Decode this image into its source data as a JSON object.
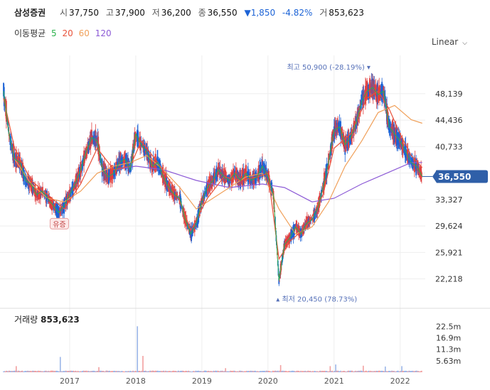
{
  "header": {
    "name": "삼성증권",
    "open_label": "시",
    "open": "37,750",
    "high_label": "고",
    "high": "37,900",
    "low_label": "저",
    "low": "36,200",
    "close_label": "종",
    "close": "36,550",
    "change": "▼1,850",
    "change_pct": "-4.82%",
    "volume_label": "거",
    "volume": "853,623"
  },
  "ma_legend": {
    "label": "이동평균",
    "items": [
      {
        "label": "5",
        "color": "#2bb24c"
      },
      {
        "label": "20",
        "color": "#e8523a"
      },
      {
        "label": "60",
        "color": "#f0a05a"
      },
      {
        "label": "120",
        "color": "#8c5ad6"
      }
    ]
  },
  "scale_button": {
    "label": "Linear",
    "icon": "chevron-down-icon"
  },
  "colors": {
    "up": "#e04040",
    "down": "#1c63d6",
    "price_tag": "#2f5fa8",
    "grid": "#eeeeee"
  },
  "chart_data": {
    "type": "candlestick",
    "x_ticks": [
      "2017",
      "2018",
      "2019",
      "2020",
      "2021",
      "2022"
    ],
    "y_ticks": [
      "48,139",
      "44,436",
      "40,733",
      "37,030",
      "33,327",
      "29,624",
      "25,921",
      "22,218"
    ],
    "ylim": [
      19000,
      52500
    ],
    "current_price": {
      "label": "36,550",
      "value": 36550
    },
    "max_annotation": {
      "prefix": "최고",
      "value_text": "50,900",
      "pct": "(-28.19%)",
      "value": 50900,
      "date": "2021-08"
    },
    "min_annotation": {
      "prefix": "최저",
      "value_text": "20,450",
      "pct": "(78.73%)",
      "value": 20450,
      "date": "2020-03"
    },
    "event_tag": {
      "label": "유증",
      "date": "2016-11"
    },
    "price_path": [
      [
        "2016-01",
        48500
      ],
      [
        "2016-02",
        42500
      ],
      [
        "2016-03",
        39000
      ],
      [
        "2016-04",
        38500
      ],
      [
        "2016-05",
        36000
      ],
      [
        "2016-06",
        35500
      ],
      [
        "2016-07",
        34000
      ],
      [
        "2016-08",
        34500
      ],
      [
        "2016-09",
        33500
      ],
      [
        "2016-10",
        32500
      ],
      [
        "2016-11",
        31500
      ],
      [
        "2016-12",
        32500
      ],
      [
        "2017-01",
        34000
      ],
      [
        "2017-02",
        35500
      ],
      [
        "2017-03",
        37500
      ],
      [
        "2017-04",
        40000
      ],
      [
        "2017-05",
        42000
      ],
      [
        "2017-06",
        41500
      ],
      [
        "2017-07",
        37500
      ],
      [
        "2017-08",
        36500
      ],
      [
        "2017-09",
        37000
      ],
      [
        "2017-10",
        38500
      ],
      [
        "2017-11",
        39000
      ],
      [
        "2017-12",
        37500
      ],
      [
        "2018-01",
        42500
      ],
      [
        "2018-02",
        41000
      ],
      [
        "2018-03",
        40000
      ],
      [
        "2018-04",
        38000
      ],
      [
        "2018-05",
        38500
      ],
      [
        "2018-06",
        36500
      ],
      [
        "2018-07",
        35000
      ],
      [
        "2018-08",
        34000
      ],
      [
        "2018-09",
        33500
      ],
      [
        "2018-10",
        30500
      ],
      [
        "2018-11",
        28500
      ],
      [
        "2018-12",
        30000
      ],
      [
        "2019-01",
        33000
      ],
      [
        "2019-02",
        35000
      ],
      [
        "2019-03",
        36000
      ],
      [
        "2019-04",
        37500
      ],
      [
        "2019-05",
        36500
      ],
      [
        "2019-06",
        36000
      ],
      [
        "2019-07",
        37000
      ],
      [
        "2019-08",
        36000
      ],
      [
        "2019-09",
        37000
      ],
      [
        "2019-10",
        36000
      ],
      [
        "2019-11",
        36500
      ],
      [
        "2019-12",
        38000
      ],
      [
        "2020-01",
        36500
      ],
      [
        "2020-02",
        34000
      ],
      [
        "2020-03",
        22000
      ],
      [
        "2020-04",
        27000
      ],
      [
        "2020-05",
        28000
      ],
      [
        "2020-06",
        29500
      ],
      [
        "2020-07",
        28500
      ],
      [
        "2020-08",
        30000
      ],
      [
        "2020-09",
        30500
      ],
      [
        "2020-10",
        32000
      ],
      [
        "2020-11",
        35000
      ],
      [
        "2020-12",
        38500
      ],
      [
        "2021-01",
        43000
      ],
      [
        "2021-02",
        43500
      ],
      [
        "2021-03",
        41000
      ],
      [
        "2021-04",
        42000
      ],
      [
        "2021-05",
        44000
      ],
      [
        "2021-06",
        47000
      ],
      [
        "2021-07",
        48500
      ],
      [
        "2021-08",
        49000
      ],
      [
        "2021-09",
        48000
      ],
      [
        "2021-10",
        48500
      ],
      [
        "2021-11",
        43500
      ],
      [
        "2021-12",
        42500
      ],
      [
        "2022-01",
        41500
      ],
      [
        "2022-02",
        40000
      ],
      [
        "2022-03",
        38500
      ],
      [
        "2022-04",
        38000
      ],
      [
        "2022-05",
        36550
      ]
    ],
    "ma20": [
      [
        "2016-01",
        47500
      ],
      [
        "2016-03",
        40500
      ],
      [
        "2016-06",
        36000
      ],
      [
        "2016-09",
        34000
      ],
      [
        "2016-12",
        32000
      ],
      [
        "2017-03",
        35500
      ],
      [
        "2017-06",
        40500
      ],
      [
        "2017-09",
        37500
      ],
      [
        "2017-12",
        38000
      ],
      [
        "2018-02",
        41500
      ],
      [
        "2018-05",
        38500
      ],
      [
        "2018-08",
        35000
      ],
      [
        "2018-11",
        29000
      ],
      [
        "2019-02",
        33500
      ],
      [
        "2019-05",
        36500
      ],
      [
        "2019-08",
        36000
      ],
      [
        "2019-11",
        36500
      ],
      [
        "2020-01",
        37000
      ],
      [
        "2020-03",
        25000
      ],
      [
        "2020-05",
        27500
      ],
      [
        "2020-08",
        29500
      ],
      [
        "2020-11",
        34000
      ],
      [
        "2021-01",
        40500
      ],
      [
        "2021-04",
        42500
      ],
      [
        "2021-07",
        47500
      ],
      [
        "2021-09",
        48500
      ],
      [
        "2021-11",
        46000
      ],
      [
        "2022-01",
        42500
      ],
      [
        "2022-03",
        39500
      ],
      [
        "2022-05",
        37800
      ]
    ],
    "ma60": [
      [
        "2016-03",
        39000
      ],
      [
        "2016-06",
        35500
      ],
      [
        "2016-09",
        33500
      ],
      [
        "2016-12",
        33000
      ],
      [
        "2017-03",
        34500
      ],
      [
        "2017-06",
        37000
      ],
      [
        "2017-09",
        38000
      ],
      [
        "2017-12",
        38500
      ],
      [
        "2018-03",
        39500
      ],
      [
        "2018-06",
        37500
      ],
      [
        "2018-09",
        35000
      ],
      [
        "2018-12",
        32000
      ],
      [
        "2019-03",
        33500
      ],
      [
        "2019-06",
        35000
      ],
      [
        "2019-09",
        36500
      ],
      [
        "2019-12",
        37000
      ],
      [
        "2020-03",
        32000
      ],
      [
        "2020-06",
        28500
      ],
      [
        "2020-09",
        29500
      ],
      [
        "2020-12",
        33000
      ],
      [
        "2021-03",
        38000
      ],
      [
        "2021-06",
        41500
      ],
      [
        "2021-09",
        45500
      ],
      [
        "2021-12",
        46500
      ],
      [
        "2022-03",
        44500
      ],
      [
        "2022-05",
        44000
      ]
    ],
    "ma120": [
      [
        "2017-09",
        37500
      ],
      [
        "2018-01",
        38000
      ],
      [
        "2018-06",
        37500
      ],
      [
        "2018-12",
        36000
      ],
      [
        "2019-06",
        35000
      ],
      [
        "2019-12",
        35500
      ],
      [
        "2020-04",
        35000
      ],
      [
        "2020-09",
        33000
      ],
      [
        "2021-01",
        33500
      ],
      [
        "2021-06",
        35500
      ],
      [
        "2021-12",
        37500
      ],
      [
        "2022-03",
        38500
      ],
      [
        "2022-05",
        38500
      ]
    ],
    "volume": {
      "label": "거래량",
      "value_text": "853,623",
      "y_ticks": [
        "22.5m",
        "16.9m",
        "11.3m",
        "5.63m"
      ],
      "ylim": [
        0,
        24000000
      ],
      "spikes": [
        [
          "2016-03",
          3000000
        ],
        [
          "2016-11",
          7500000
        ],
        [
          "2017-06",
          2500000
        ],
        [
          "2018-01",
          22500000
        ],
        [
          "2018-02",
          8000000
        ],
        [
          "2019-05",
          2000000
        ],
        [
          "2020-03",
          3500000
        ],
        [
          "2020-12",
          3000000
        ],
        [
          "2021-01",
          3800000
        ],
        [
          "2021-06",
          3200000
        ],
        [
          "2021-10",
          2800000
        ],
        [
          "2022-01",
          3000000
        ]
      ]
    }
  }
}
